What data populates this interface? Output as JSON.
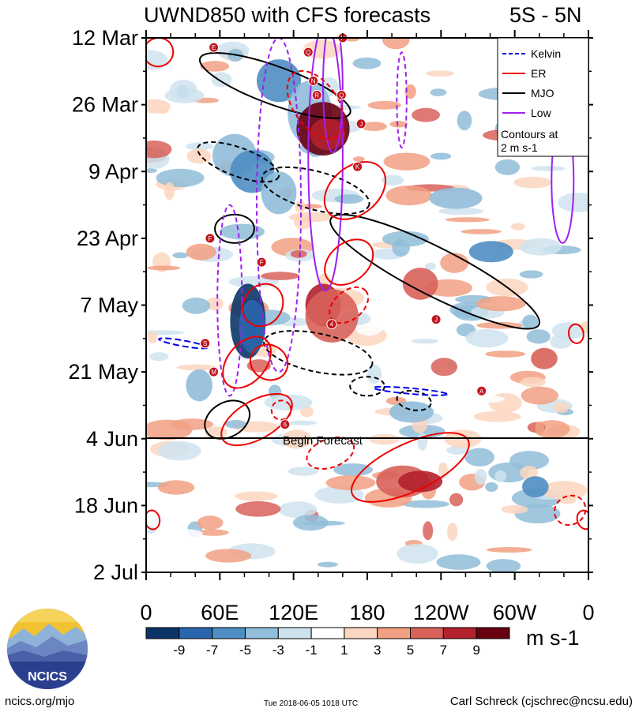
{
  "header": {
    "title": "UWND850 with CFS forecasts",
    "lat_band": "5S - 5N"
  },
  "chart_data": {
    "type": "heatmap",
    "title": "UWND850 with CFS forecasts",
    "subtitle": "5S - 5N",
    "variable": "850-hPa zonal wind anomaly",
    "units": "m s-1",
    "x_ticks": [
      "0",
      "60E",
      "120E",
      "180",
      "120W",
      "60W",
      "0"
    ],
    "x_range_deg": [
      0,
      360
    ],
    "y_ticks": [
      "12 Mar",
      "26 Mar",
      "9 Apr",
      "23 Apr",
      "7 May",
      "21 May",
      "4 Jun",
      "18 Jun",
      "2 Jul"
    ],
    "y_range_days": [
      0,
      112
    ],
    "colorbar": {
      "labels": [
        "-9",
        "-7",
        "-5",
        "-3",
        "-1",
        "1",
        "3",
        "5",
        "7",
        "9"
      ],
      "colors": [
        "#0b3568",
        "#2a66ac",
        "#4f8ec3",
        "#91bdd9",
        "#cfe3ef",
        "#ffffff",
        "#fbd6c0",
        "#f1a083",
        "#d8625a",
        "#b3202e",
        "#68000f"
      ]
    },
    "legend": {
      "entries": [
        {
          "label": "Kelvin",
          "color": "#0000ee",
          "dash": "long-dash"
        },
        {
          "label": "ER",
          "color": "#ee0000",
          "dash": "solid"
        },
        {
          "label": "MJO",
          "color": "#000000",
          "dash": "solid"
        },
        {
          "label": "Low",
          "color": "#a020f0",
          "dash": "solid"
        }
      ],
      "note": "Contours at 2 m s-1",
      "position": "top-right"
    },
    "forecast_line": {
      "label": "Begin Forecast",
      "date": "4 Jun",
      "day": 84
    },
    "storm_markers": [
      {
        "letter": "E",
        "lon": 55,
        "day": 2
      },
      {
        "letter": "Q",
        "lon": 132,
        "day": 3
      },
      {
        "letter": "P",
        "lon": 160,
        "day": 0
      },
      {
        "letter": "N",
        "lon": 136,
        "day": 9
      },
      {
        "letter": "R",
        "lon": 139,
        "day": 12
      },
      {
        "letter": "Q",
        "lon": 159,
        "day": 12
      },
      {
        "letter": "J",
        "lon": 175,
        "day": 18
      },
      {
        "letter": "K",
        "lon": 172,
        "day": 27
      },
      {
        "letter": "F",
        "lon": 52,
        "day": 42
      },
      {
        "letter": "F",
        "lon": 94,
        "day": 47
      },
      {
        "letter": "J",
        "lon": 236,
        "day": 59
      },
      {
        "letter": "4",
        "lon": 151,
        "day": 60
      },
      {
        "letter": "S",
        "lon": 48,
        "day": 64
      },
      {
        "letter": "M",
        "lon": 55,
        "day": 70
      },
      {
        "letter": "A",
        "lon": 273,
        "day": 74
      },
      {
        "letter": "6",
        "lon": 113,
        "day": 81
      }
    ]
  },
  "footer": {
    "left": "ncics.org/mjo",
    "timestamp": "Tue 2018-06-05 1018 UTC",
    "author": "Carl Schreck (cjschrec@ncsu.edu)"
  },
  "logo": {
    "text": "NCICS"
  }
}
